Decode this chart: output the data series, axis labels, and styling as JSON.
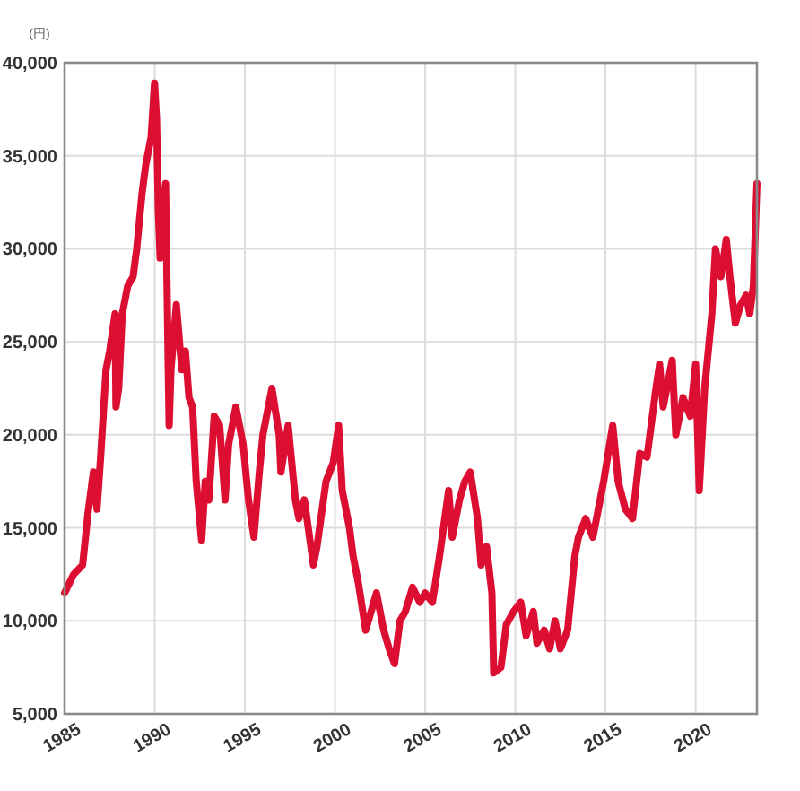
{
  "chart_data": {
    "type": "line",
    "ylabel": "(円)",
    "xlim": [
      1985,
      2023.4
    ],
    "xticks": [
      1985,
      1990,
      1995,
      2000,
      2005,
      2010,
      2015,
      2020
    ],
    "ylim": [
      5000,
      40000
    ],
    "yticks": [
      {
        "value": 5000,
        "label": "5,000"
      },
      {
        "value": 10000,
        "label": "10,000"
      },
      {
        "value": 15000,
        "label": "15,000"
      },
      {
        "value": 20000,
        "label": "20,000"
      },
      {
        "value": 25000,
        "label": "25,000"
      },
      {
        "value": 30000,
        "label": "30,000"
      },
      {
        "value": 35000,
        "label": "35,000"
      },
      {
        "value": 40000,
        "label": "40,000"
      }
    ],
    "grid": true,
    "line_style": "solid",
    "series": [
      {
        "color": "#dc0f32",
        "x": [
          1985.0,
          1985.5,
          1986.0,
          1986.3,
          1986.6,
          1986.8,
          1987.0,
          1987.3,
          1987.5,
          1987.8,
          1987.85,
          1988.0,
          1988.2,
          1988.5,
          1988.8,
          1989.0,
          1989.3,
          1989.5,
          1989.8,
          1989.99,
          1990.1,
          1990.2,
          1990.3,
          1990.5,
          1990.6,
          1990.75,
          1990.8,
          1990.9,
          1991.2,
          1991.5,
          1991.7,
          1991.9,
          1992.1,
          1992.3,
          1992.6,
          1992.8,
          1993.0,
          1993.3,
          1993.6,
          1993.9,
          1994.1,
          1994.5,
          1994.9,
          1995.2,
          1995.5,
          1995.8,
          1996.0,
          1996.5,
          1996.9,
          1997.0,
          1997.4,
          1997.8,
          1998.0,
          1998.3,
          1998.8,
          1999.0,
          1999.5,
          1999.9,
          2000.2,
          2000.4,
          2000.8,
          2001.0,
          2001.3,
          2001.7,
          2002.0,
          2002.3,
          2002.7,
          2003.0,
          2003.3,
          2003.6,
          2003.9,
          2004.3,
          2004.7,
          2005.0,
          2005.4,
          2005.8,
          2006.3,
          2006.5,
          2006.9,
          2007.2,
          2007.5,
          2007.9,
          2008.1,
          2008.4,
          2008.7,
          2008.8,
          2009.2,
          2009.5,
          2009.9,
          2010.3,
          2010.6,
          2011.0,
          2011.2,
          2011.6,
          2011.9,
          2012.2,
          2012.5,
          2012.9,
          2013.3,
          2013.5,
          2013.9,
          2014.3,
          2014.9,
          2015.4,
          2015.7,
          2016.1,
          2016.5,
          2016.9,
          2017.3,
          2017.8,
          2018.0,
          2018.2,
          2018.7,
          2018.9,
          2019.3,
          2019.7,
          2020.0,
          2020.2,
          2020.5,
          2020.9,
          2021.1,
          2021.4,
          2021.7,
          2021.9,
          2022.2,
          2022.5,
          2022.8,
          2023.0,
          2023.2,
          2023.4
        ],
        "values": [
          11500,
          12500,
          13000,
          15800,
          18000,
          16000,
          18800,
          23500,
          24500,
          26500,
          21500,
          22500,
          26500,
          28000,
          28500,
          30000,
          33000,
          34500,
          36000,
          38900,
          37000,
          32000,
          29500,
          32500,
          33500,
          23500,
          20500,
          23500,
          27000,
          23500,
          24500,
          22000,
          21500,
          17500,
          14300,
          17500,
          16500,
          21000,
          20500,
          16500,
          19500,
          21500,
          19500,
          16500,
          14500,
          18000,
          20000,
          22500,
          20000,
          18000,
          20500,
          16500,
          15500,
          16500,
          13000,
          14000,
          17500,
          18500,
          20500,
          17000,
          15000,
          13500,
          12000,
          9500,
          10500,
          11500,
          9500,
          8500,
          7700,
          10000,
          10500,
          11800,
          11000,
          11500,
          11000,
          13500,
          17000,
          14500,
          16500,
          17500,
          18000,
          15500,
          13000,
          14000,
          11500,
          7200,
          7500,
          9800,
          10500,
          11000,
          9200,
          10500,
          8800,
          9500,
          8500,
          10000,
          8500,
          9500,
          13500,
          14500,
          15500,
          14500,
          17500,
          20500,
          17500,
          16000,
          15500,
          19000,
          18800,
          22500,
          23800,
          21500,
          24000,
          20000,
          22000,
          21000,
          23800,
          17000,
          22500,
          26500,
          30000,
          28500,
          30500,
          28500,
          26000,
          27000,
          27500,
          26500,
          28000,
          33500
        ]
      }
    ]
  }
}
